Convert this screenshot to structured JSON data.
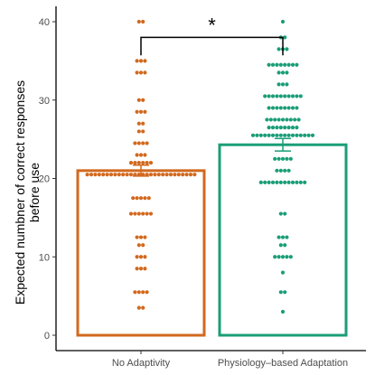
{
  "chart_data": {
    "type": "bar",
    "title": "",
    "xlabel": "",
    "ylabel_lines": [
      "Expected numbner of correct responses",
      "before use"
    ],
    "ylim": [
      0,
      42
    ],
    "yticks": [
      0,
      10,
      20,
      30,
      40
    ],
    "grid": false,
    "categories": [
      "No Adaptivity",
      "Physiology–based Adaptation"
    ],
    "colors": [
      "#d2691e",
      "#1a9e77"
    ],
    "values": [
      21.0,
      24.3
    ],
    "error": [
      0.7,
      0.8
    ],
    "significance": {
      "label": "*",
      "between": [
        0,
        1
      ],
      "y": 38.0
    },
    "points": [
      [
        40,
        40,
        35,
        35,
        35,
        33.5,
        33.5,
        33.5,
        30,
        30,
        28.5,
        28.5,
        28.5,
        27,
        27,
        26,
        26,
        24.5,
        24.5,
        24.5,
        24.5,
        23,
        23,
        23,
        22,
        22,
        22,
        22,
        22,
        22,
        20.5,
        20.5,
        20.5,
        20.5,
        20.5,
        20.5,
        20.5,
        20.5,
        20.5,
        20.5,
        20.5,
        20.5,
        20.5,
        20.5,
        20.5,
        20.5,
        20.5,
        20.5,
        20.5,
        20.5,
        20.5,
        20.5,
        20.5,
        20.5,
        20.5,
        20.5,
        20.5,
        20.5,
        17.5,
        17.5,
        17.5,
        17.5,
        17.5,
        15.5,
        15.5,
        15.5,
        15.5,
        15.5,
        15.5,
        12.5,
        12.5,
        12.5,
        11.5,
        11.5,
        10,
        10,
        10,
        8.5,
        8.5,
        8.5,
        5.5,
        5.5,
        5.5,
        5.5,
        3.5,
        3.5
      ],
      [
        40,
        38,
        38,
        36.5,
        36.5,
        36.5,
        34.5,
        34.5,
        34.5,
        34.5,
        34.5,
        34.5,
        34.5,
        34.5,
        33.5,
        33.5,
        33.5,
        32,
        32,
        32,
        30.5,
        30.5,
        30.5,
        30.5,
        30.5,
        30.5,
        30.5,
        30.5,
        30.5,
        30.5,
        29,
        29,
        29,
        29,
        29,
        29,
        29,
        29,
        27.5,
        27.5,
        27.5,
        27.5,
        27.5,
        27.5,
        27.5,
        27.5,
        27.5,
        26.5,
        26.5,
        26.5,
        26.5,
        26.5,
        26.5,
        26.5,
        26.5,
        25.5,
        25.5,
        25.5,
        25.5,
        25.5,
        25.5,
        25.5,
        25.5,
        25.5,
        25.5,
        25.5,
        25.5,
        25.5,
        25.5,
        25.5,
        25.5,
        22.5,
        22.5,
        22.5,
        22.5,
        22.5,
        21,
        21,
        21,
        21,
        19.5,
        19.5,
        19.5,
        19.5,
        19.5,
        19.5,
        19.5,
        19.5,
        19.5,
        19.5,
        19.5,
        19.5,
        15.5,
        15.5,
        12.5,
        12.5,
        12.5,
        11.5,
        11.5,
        10,
        10,
        10,
        10,
        10,
        8,
        5.5,
        5.5,
        3
      ]
    ]
  }
}
